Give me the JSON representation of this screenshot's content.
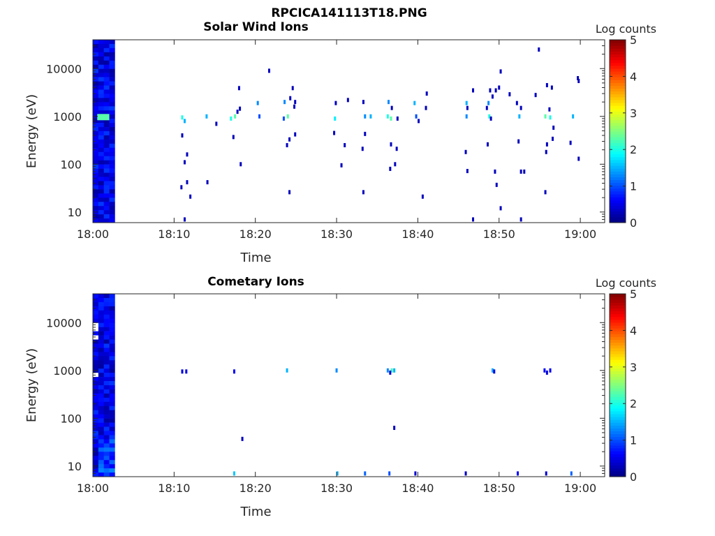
{
  "figure": {
    "title": "RPCICA141113T18.PNG"
  },
  "chart_data": [
    {
      "type": "heatmap",
      "title": "Solar Wind Ions",
      "xlabel": "Time",
      "ylabel": "Energy (eV)",
      "x_ticks": [
        "18:00",
        "18:10",
        "18:20",
        "18:30",
        "18:40",
        "18:50",
        "19:00"
      ],
      "y_ticks": [
        "10",
        "100",
        "1000",
        "10000"
      ],
      "y_scale": "log",
      "y_range": [
        6,
        40000
      ],
      "x_range_minutes": [
        0,
        63
      ],
      "colorbar": {
        "label": "Log counts",
        "ticks": [
          "0",
          "1",
          "2",
          "3",
          "4",
          "5"
        ],
        "range": [
          0,
          5
        ],
        "colormap": "jet"
      },
      "block": {
        "t_start": 0,
        "t_end": 2.7
      },
      "bright_band": {
        "t": 1.3,
        "energy": 950,
        "value": 2.3
      },
      "points": [
        [
          11.0,
          950,
          2.0
        ],
        [
          11.3,
          800,
          1.5
        ],
        [
          11.0,
          400,
          0.3
        ],
        [
          11.6,
          160,
          0.3
        ],
        [
          11.3,
          110,
          0.3
        ],
        [
          10.9,
          33,
          0.3
        ],
        [
          11.6,
          42,
          0.3
        ],
        [
          12.0,
          21,
          0.3
        ],
        [
          11.3,
          7,
          0.3
        ],
        [
          14.0,
          1000,
          1.5
        ],
        [
          14.1,
          42,
          0.3
        ],
        [
          15.2,
          700,
          0.3
        ],
        [
          17.0,
          900,
          2.0
        ],
        [
          17.5,
          1000,
          2.3
        ],
        [
          17.3,
          370,
          0.3
        ],
        [
          17.8,
          1250,
          0.3
        ],
        [
          18.1,
          1450,
          0.3
        ],
        [
          18.0,
          3900,
          0.3
        ],
        [
          18.2,
          100,
          0.3
        ],
        [
          20.3,
          1900,
          1.3
        ],
        [
          20.5,
          1000,
          1.0
        ],
        [
          21.7,
          9000,
          0.3
        ],
        [
          23.6,
          2000,
          1.3
        ],
        [
          23.5,
          900,
          1.0
        ],
        [
          24.0,
          1000,
          2.3
        ],
        [
          24.3,
          2400,
          0.3
        ],
        [
          24.6,
          3900,
          0.3
        ],
        [
          24.8,
          1600,
          0.3
        ],
        [
          24.9,
          2000,
          0.3
        ],
        [
          24.2,
          330,
          0.3
        ],
        [
          23.9,
          250,
          0.3
        ],
        [
          24.9,
          420,
          0.3
        ],
        [
          24.2,
          26,
          0.3
        ],
        [
          29.8,
          900,
          1.8
        ],
        [
          29.9,
          1900,
          0.3
        ],
        [
          29.7,
          450,
          0.3
        ],
        [
          30.6,
          95,
          0.3
        ],
        [
          31.0,
          250,
          0.3
        ],
        [
          31.4,
          2200,
          0.3
        ],
        [
          33.3,
          2000,
          0.3
        ],
        [
          33.5,
          1000,
          1.3
        ],
        [
          34.2,
          1000,
          1.5
        ],
        [
          33.5,
          430,
          0.3
        ],
        [
          33.2,
          210,
          0.3
        ],
        [
          33.3,
          26,
          0.3
        ],
        [
          36.3,
          1000,
          2.0
        ],
        [
          36.7,
          900,
          2.3
        ],
        [
          36.4,
          2000,
          1.3
        ],
        [
          36.8,
          1500,
          0.3
        ],
        [
          36.7,
          260,
          0.3
        ],
        [
          37.4,
          210,
          0.3
        ],
        [
          36.6,
          80,
          0.3
        ],
        [
          37.2,
          100,
          0.3
        ],
        [
          37.5,
          900,
          0.3
        ],
        [
          39.6,
          1900,
          1.5
        ],
        [
          39.8,
          1000,
          1.0
        ],
        [
          40.1,
          800,
          0.3
        ],
        [
          40.6,
          21,
          0.3
        ],
        [
          41.1,
          3000,
          0.3
        ],
        [
          41.0,
          1500,
          0.3
        ],
        [
          46.0,
          1900,
          1.5
        ],
        [
          46.0,
          1000,
          1.3
        ],
        [
          46.1,
          1500,
          0.3
        ],
        [
          45.9,
          180,
          0.3
        ],
        [
          46.1,
          72,
          0.3
        ],
        [
          46.8,
          3500,
          0.3
        ],
        [
          46.8,
          7,
          0.3
        ],
        [
          48.7,
          1900,
          1.3
        ],
        [
          48.8,
          1000,
          2.0
        ],
        [
          48.5,
          1500,
          0.3
        ],
        [
          48.9,
          3500,
          0.3
        ],
        [
          49.0,
          900,
          0.3
        ],
        [
          49.2,
          2600,
          0.3
        ],
        [
          49.6,
          3500,
          0.3
        ],
        [
          50.0,
          4000,
          0.3
        ],
        [
          50.2,
          8700,
          0.3
        ],
        [
          48.6,
          260,
          0.3
        ],
        [
          49.5,
          70,
          0.3
        ],
        [
          49.7,
          37,
          0.3
        ],
        [
          50.2,
          12,
          0.3
        ],
        [
          51.3,
          2900,
          0.3
        ],
        [
          52.2,
          1900,
          0.3
        ],
        [
          52.5,
          1000,
          1.5
        ],
        [
          52.7,
          1500,
          0.3
        ],
        [
          52.4,
          300,
          0.3
        ],
        [
          52.7,
          70,
          0.3
        ],
        [
          53.1,
          70,
          0.3
        ],
        [
          52.7,
          7,
          0.3
        ],
        [
          54.5,
          2800,
          0.3
        ],
        [
          54.9,
          25000,
          0.3
        ],
        [
          55.7,
          1000,
          2.3
        ],
        [
          56.3,
          950,
          2.0
        ],
        [
          55.9,
          4500,
          0.3
        ],
        [
          56.5,
          4000,
          0.3
        ],
        [
          56.2,
          1400,
          0.3
        ],
        [
          56.7,
          580,
          0.3
        ],
        [
          55.9,
          260,
          0.3
        ],
        [
          55.8,
          180,
          0.3
        ],
        [
          56.6,
          340,
          0.3
        ],
        [
          55.7,
          26,
          0.3
        ],
        [
          59.1,
          1000,
          1.5
        ],
        [
          58.8,
          280,
          0.3
        ],
        [
          59.8,
          5500,
          0.3
        ],
        [
          59.7,
          6300,
          0.3
        ],
        [
          59.8,
          130,
          0.3
        ]
      ]
    },
    {
      "type": "heatmap",
      "title": "Cometary Ions",
      "xlabel": "Time",
      "ylabel": "Energy (eV)",
      "x_ticks": [
        "18:00",
        "18:10",
        "18:20",
        "18:30",
        "18:40",
        "18:50",
        "19:00"
      ],
      "y_ticks": [
        "10",
        "100",
        "1000",
        "10000"
      ],
      "y_scale": "log",
      "y_range": [
        6,
        40000
      ],
      "x_range_minutes": [
        0,
        63
      ],
      "colorbar": {
        "label": "Log counts",
        "ticks": [
          "0",
          "1",
          "2",
          "3",
          "4",
          "5"
        ],
        "range": [
          0,
          5
        ],
        "colormap": "jet"
      },
      "block": {
        "t_start": 0,
        "t_end": 2.7
      },
      "points": [
        [
          11.0,
          950,
          0.5
        ],
        [
          11.5,
          950,
          0.5
        ],
        [
          17.4,
          950,
          0.6
        ],
        [
          23.9,
          1000,
          1.5
        ],
        [
          30.0,
          1000,
          1.3
        ],
        [
          36.3,
          1000,
          1.3
        ],
        [
          36.8,
          1000,
          2.2
        ],
        [
          37.1,
          1000,
          1.5
        ],
        [
          36.6,
          900,
          0.4
        ],
        [
          37.1,
          63,
          0.3
        ],
        [
          18.4,
          37,
          0.3
        ],
        [
          49.2,
          1000,
          1.5
        ],
        [
          49.4,
          950,
          0.5
        ],
        [
          55.6,
          1000,
          0.6
        ],
        [
          56.3,
          1000,
          0.6
        ],
        [
          55.9,
          900,
          0.4
        ],
        [
          17.4,
          7,
          1.6
        ],
        [
          30.1,
          7,
          1.5
        ],
        [
          33.5,
          7,
          1.1
        ],
        [
          36.5,
          7,
          1.0
        ],
        [
          39.7,
          7,
          0.4
        ],
        [
          45.9,
          7,
          0.3
        ],
        [
          52.3,
          7,
          0.6
        ],
        [
          55.8,
          7,
          0.4
        ],
        [
          58.9,
          7,
          1.1
        ]
      ]
    }
  ]
}
